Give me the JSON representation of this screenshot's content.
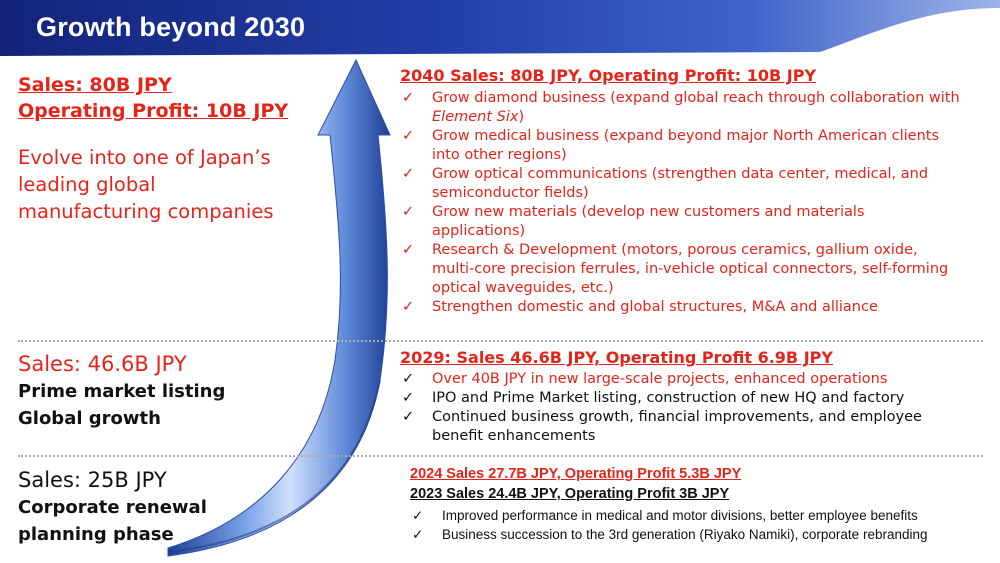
{
  "title": "Growth beyond 2030",
  "colors": {
    "header_blue": "#1b2f8f",
    "accent_red": "#e52419",
    "arrow_blue": "#4a7fd6"
  },
  "left": {
    "top": {
      "sales": "Sales: 80B JPY",
      "profit": "Operating Profit: 10B JPY",
      "desc": [
        "Evolve into one of Japan’s",
        "leading global",
        "manufacturing companies"
      ]
    },
    "mid": {
      "sales": "Sales: 46.6B JPY",
      "lines": [
        "Prime market listing",
        "Global growth"
      ]
    },
    "bottom": {
      "sales": "Sales: 25B JPY",
      "lines": [
        "Corporate renewal",
        "planning phase"
      ]
    }
  },
  "right": {
    "s2040": {
      "heading": "2040 Sales: 80B JPY, Operating Profit: 10B JPY",
      "items": [
        {
          "text": "Grow diamond business (expand global reach through collaboration with",
          "tail": "Element Six",
          "tail_after": ")"
        },
        {
          "text": "Grow medical business (expand beyond major North American clients",
          "line2": "into other regions)"
        },
        {
          "text": "Grow optical communications (strengthen data center, medical, and",
          "line2": "semiconductor fields)"
        },
        {
          "text": "Grow new materials (develop new customers and materials",
          "line2": "applications)"
        },
        {
          "text": "Research & Development (motors, porous ceramics, gallium oxide,",
          "line2": "multi-core precision ferrules, in-vehicle optical connectors, self-forming",
          "line3": "optical waveguides, etc.)"
        },
        {
          "text": "Strengthen domestic and global structures, M&A and alliance"
        }
      ]
    },
    "s2029": {
      "heading": "2029: Sales 46.6B JPY, Operating Profit 6.9B JPY",
      "items": [
        {
          "text": "Over 40B JPY in new large-scale projects, enhanced operations"
        },
        {
          "text": "IPO and Prime Market listing, construction of new HQ and factory"
        },
        {
          "text": "Continued business growth, financial improvements, and employee",
          "line2": "benefit enhancements"
        }
      ]
    },
    "s2024": {
      "heading_red": "2024 Sales 27.7B JPY, Operating Profit 5.3B JPY",
      "heading_black": "2023 Sales 24.4B JPY, Operating Profit 3B JPY",
      "items": [
        {
          "text": "Improved performance in medical and motor divisions, better employee benefits"
        },
        {
          "text": "Business succession to the 3rd generation (Riyako Namiki), corporate rebranding"
        }
      ]
    },
    "check": "✓"
  }
}
